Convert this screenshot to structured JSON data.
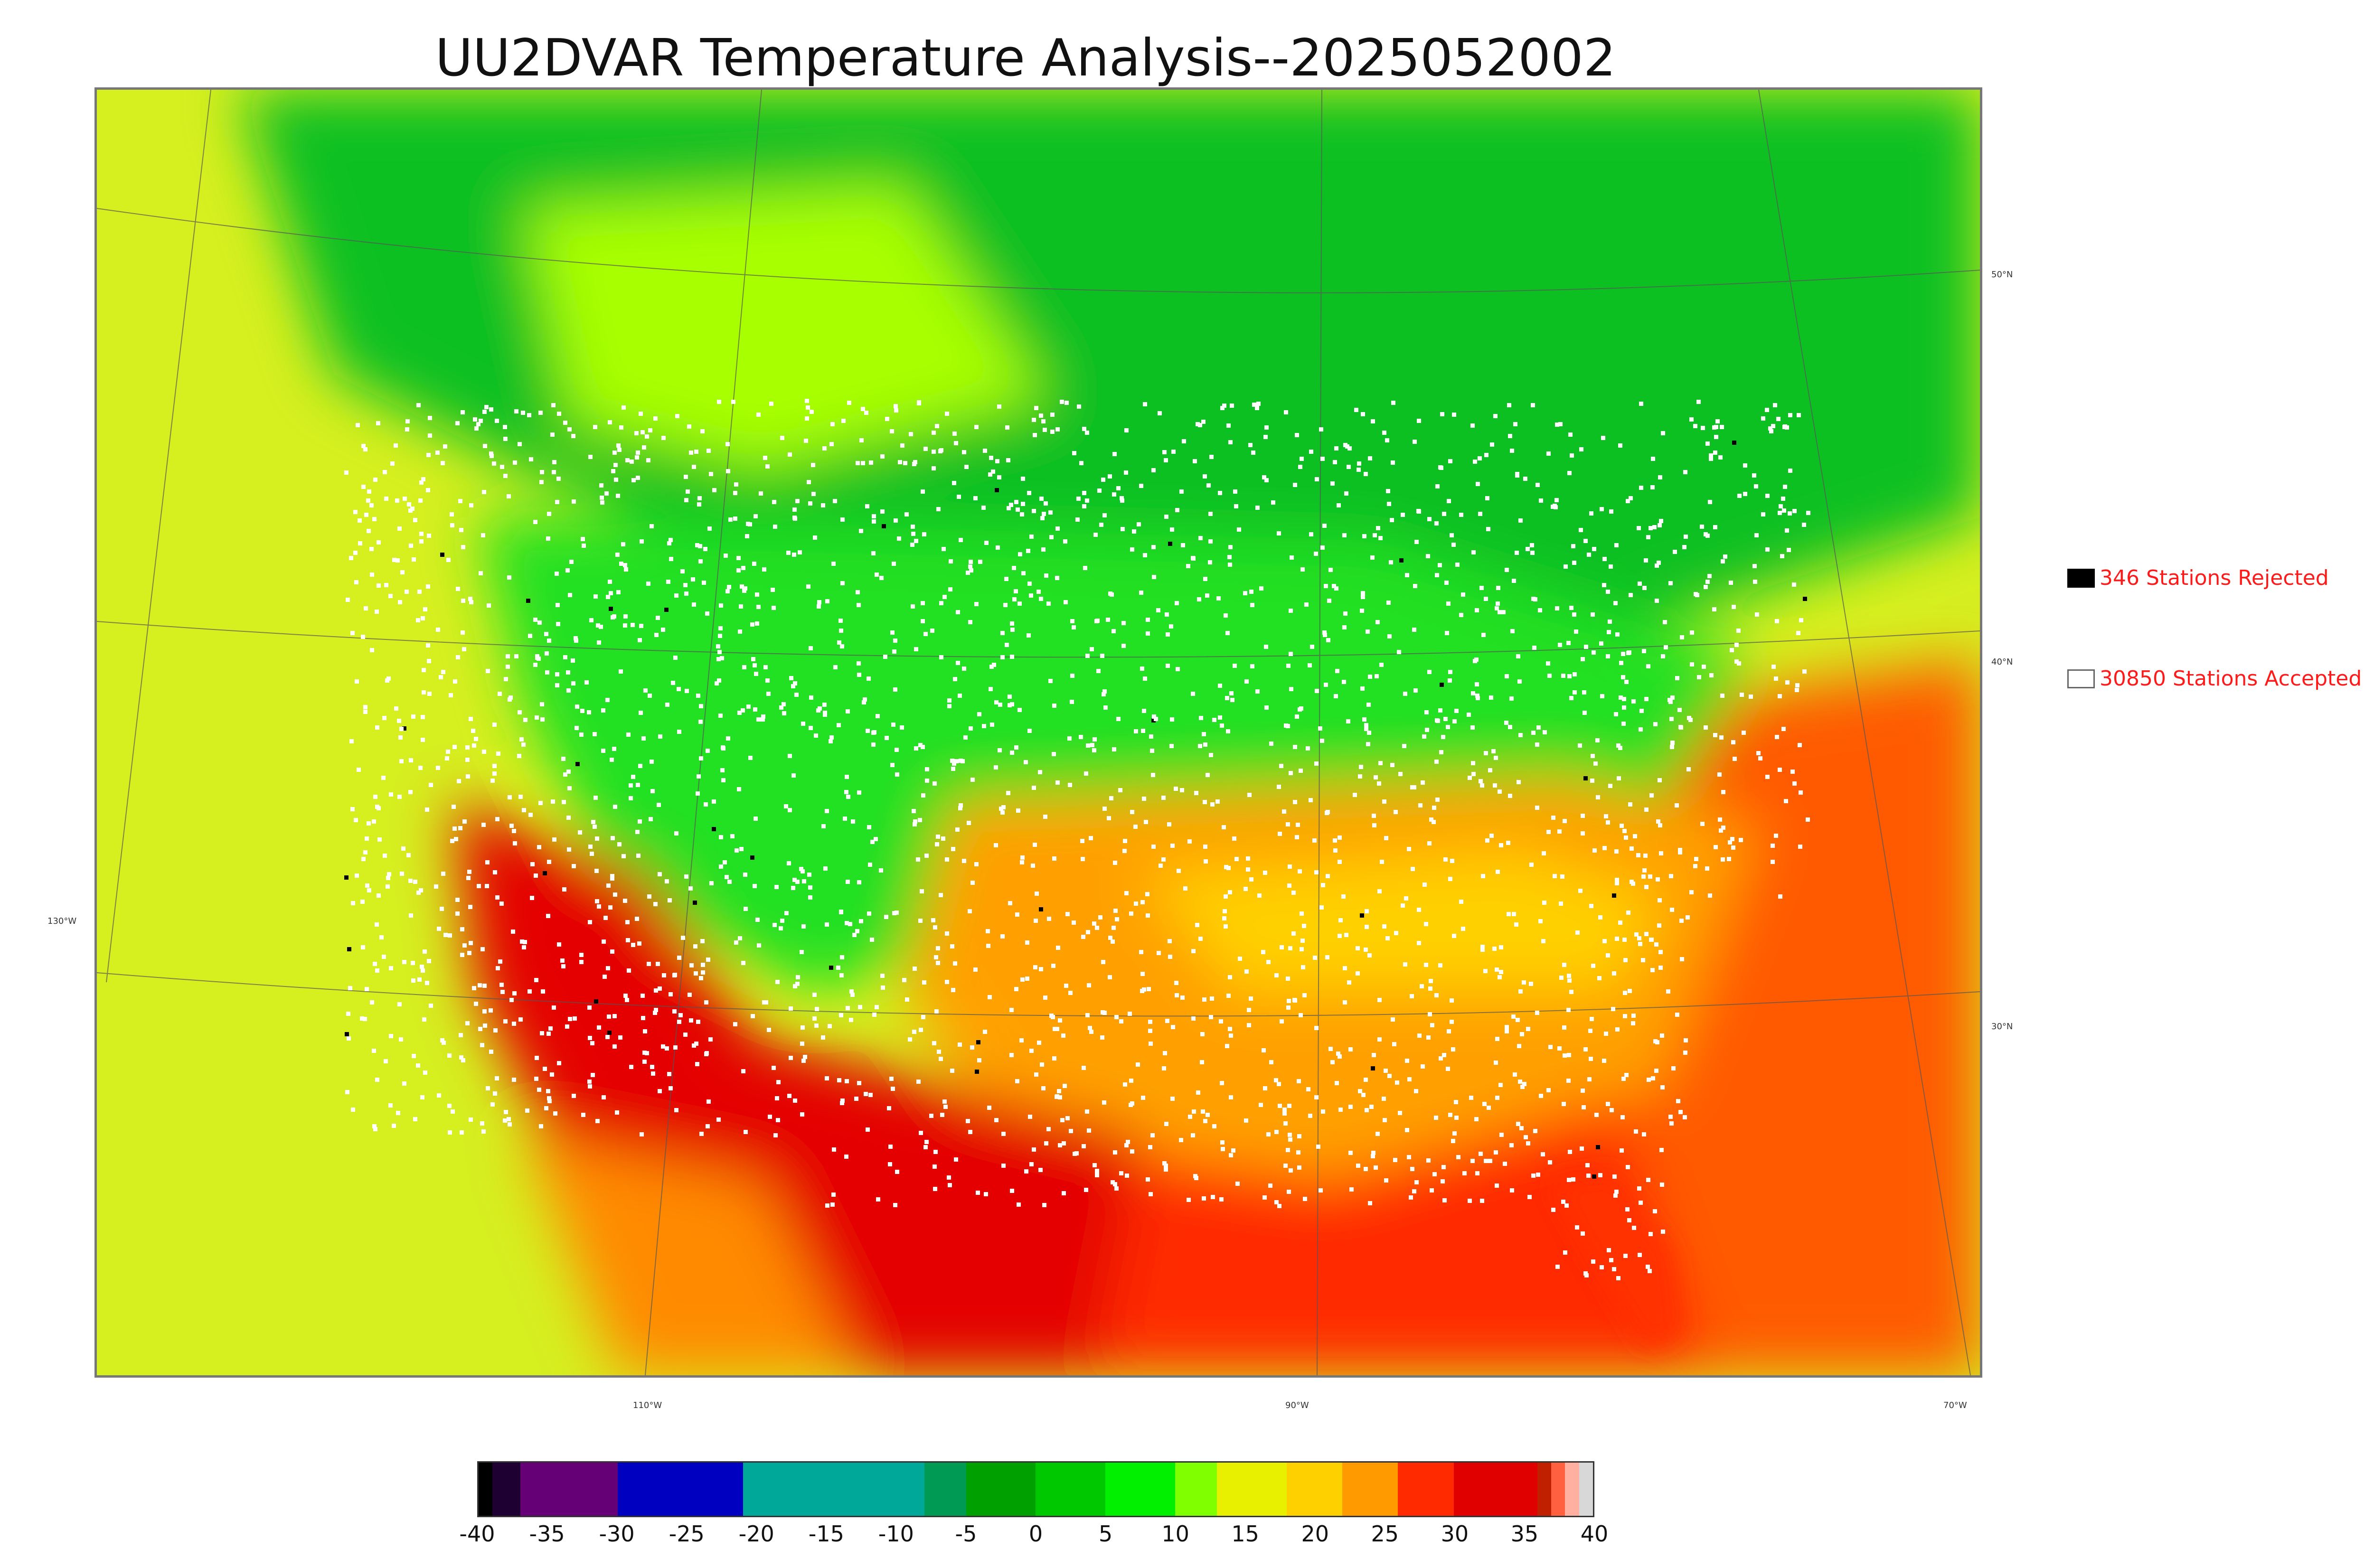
{
  "title": "UU2DVAR Temperature Analysis--2025052002",
  "legend": {
    "rejected": {
      "label": "346 Stations Rejected",
      "count": 346,
      "color": "#000000"
    },
    "accepted": {
      "label": "30850 Stations Accepted",
      "count": 30850,
      "color": "#ffffff"
    }
  },
  "gridlines": {
    "latitude_labels": [
      "50°N",
      "40°N",
      "30°N"
    ],
    "longitude_labels": [
      "130°W",
      "110°W",
      "90°W",
      "70°W"
    ]
  },
  "colorbar": {
    "min": -40,
    "max": 40,
    "tick_labels": [
      "-40",
      "-35",
      "-30",
      "-25",
      "-20",
      "-15",
      "-10",
      "-5",
      "0",
      "5",
      "10",
      "15",
      "20",
      "25",
      "30",
      "35",
      "40"
    ],
    "segments": [
      {
        "from": -40,
        "to": -39,
        "color": "#000000"
      },
      {
        "from": -39,
        "to": -37,
        "color": "#1e0033"
      },
      {
        "from": -37,
        "to": -30,
        "color": "#660077"
      },
      {
        "from": -30,
        "to": -21,
        "color": "#0000c0"
      },
      {
        "from": -21,
        "to": -8,
        "color": "#00a89a"
      },
      {
        "from": -8,
        "to": -5,
        "color": "#009a55"
      },
      {
        "from": -5,
        "to": 0,
        "color": "#00a000"
      },
      {
        "from": 0,
        "to": 5,
        "color": "#00c800"
      },
      {
        "from": 5,
        "to": 10,
        "color": "#00f000"
      },
      {
        "from": 10,
        "to": 13,
        "color": "#80ff00"
      },
      {
        "from": 13,
        "to": 18,
        "color": "#e8f000"
      },
      {
        "from": 18,
        "to": 22,
        "color": "#ffd000"
      },
      {
        "from": 22,
        "to": 26,
        "color": "#ff9a00"
      },
      {
        "from": 26,
        "to": 30,
        "color": "#ff2a00"
      },
      {
        "from": 30,
        "to": 36,
        "color": "#e00000"
      },
      {
        "from": 36,
        "to": 37,
        "color": "#c02000"
      },
      {
        "from": 37,
        "to": 38,
        "color": "#ff6040"
      },
      {
        "from": 38,
        "to": 39,
        "color": "#ffb0a0"
      },
      {
        "from": 39,
        "to": 40,
        "color": "#d8d8d8"
      }
    ]
  },
  "map_colors": {
    "ocean_pacific": "#d6ef1f",
    "ocean_atlantic": "#ff5a00",
    "gulf": "#ff3000",
    "canada_cool": "#10c020",
    "plains_green": "#20dd20",
    "southwest_hot": "#e40000",
    "mid_warm": "#ffa000",
    "station_accepted": "#ffffff",
    "station_rejected": "#000000"
  }
}
